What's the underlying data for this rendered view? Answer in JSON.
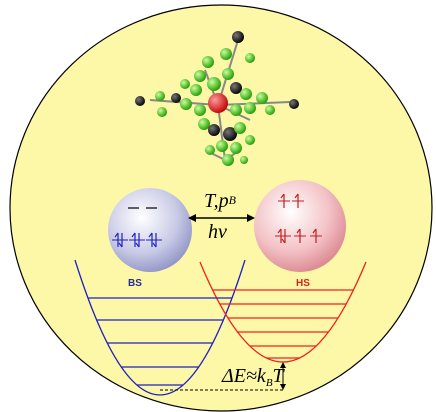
{
  "labels": {
    "stimulus_top": "T,p",
    "stimulus_top_sub": "B",
    "stimulus_bottom": "hν",
    "bs": "BS",
    "hs": "HS",
    "energy_gap": "ΔE≈k",
    "energy_gap_sub": "B",
    "energy_gap_end": "T"
  }
}
